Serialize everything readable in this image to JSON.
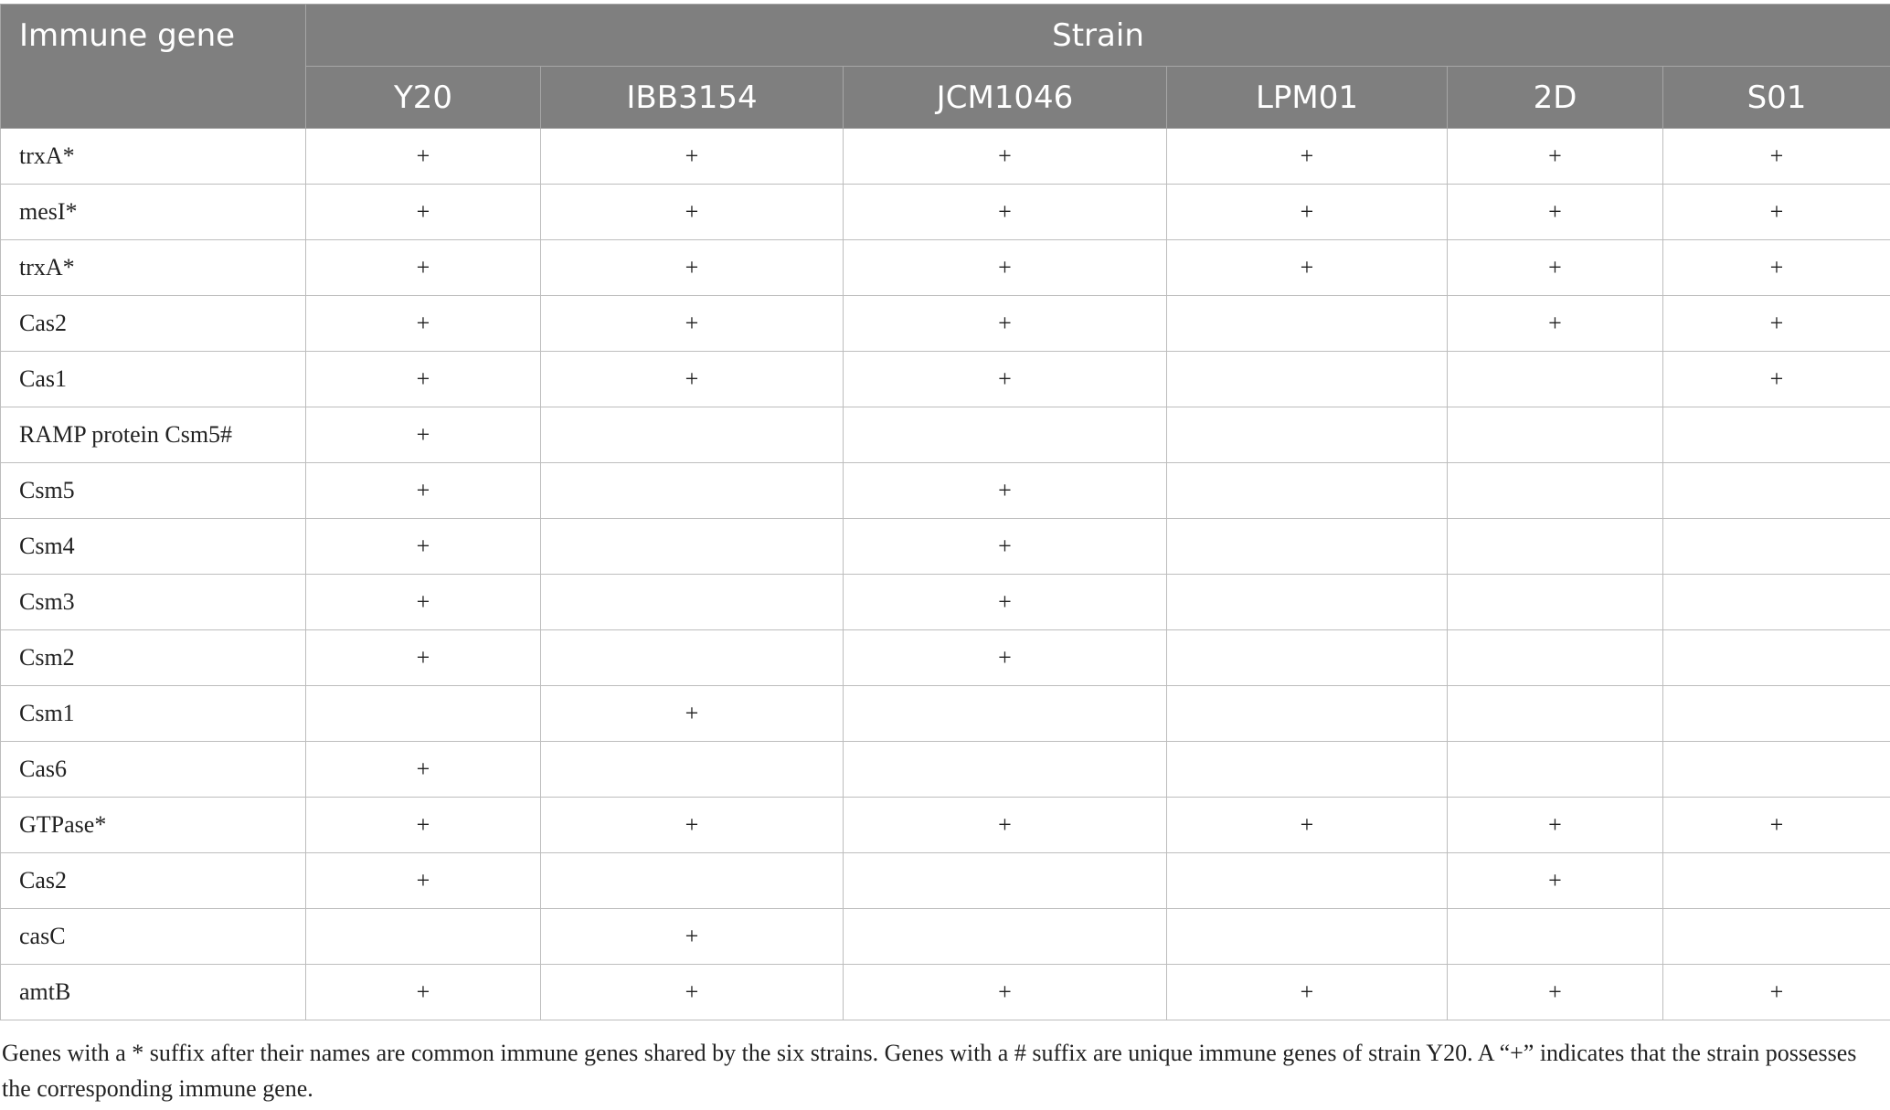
{
  "table": {
    "row_header": "Immune gene",
    "group_header": "Strain",
    "strains": [
      "Y20",
      "IBB3154",
      "JCM1046",
      "LPM01",
      "2D",
      "S01"
    ],
    "rows": [
      {
        "gene": "trxA*",
        "cells": [
          "+",
          "+",
          "+",
          "+",
          "+",
          "+"
        ]
      },
      {
        "gene": "mesI*",
        "cells": [
          "+",
          "+",
          "+",
          "+",
          "+",
          "+"
        ]
      },
      {
        "gene": "trxA*",
        "cells": [
          "+",
          "+",
          "+",
          "+",
          "+",
          "+"
        ]
      },
      {
        "gene": "Cas2",
        "cells": [
          "+",
          "+",
          "+",
          "",
          "+",
          "+"
        ]
      },
      {
        "gene": "Cas1",
        "cells": [
          "+",
          "+",
          "+",
          "",
          "",
          "+"
        ]
      },
      {
        "gene": "RAMP protein Csm5#",
        "cells": [
          "+",
          "",
          "",
          "",
          "",
          ""
        ]
      },
      {
        "gene": "Csm5",
        "cells": [
          "+",
          "",
          "+",
          "",
          "",
          ""
        ]
      },
      {
        "gene": "Csm4",
        "cells": [
          "+",
          "",
          "+",
          "",
          "",
          ""
        ]
      },
      {
        "gene": "Csm3",
        "cells": [
          "+",
          "",
          "+",
          "",
          "",
          ""
        ]
      },
      {
        "gene": "Csm2",
        "cells": [
          "+",
          "",
          "+",
          "",
          "",
          ""
        ]
      },
      {
        "gene": "Csm1",
        "cells": [
          "",
          "+",
          "",
          "",
          "",
          ""
        ]
      },
      {
        "gene": "Cas6",
        "cells": [
          "+",
          "",
          "",
          "",
          "",
          ""
        ]
      },
      {
        "gene": "GTPase*",
        "cells": [
          "+",
          "+",
          "+",
          "+",
          "+",
          "+"
        ]
      },
      {
        "gene": "Cas2",
        "cells": [
          "+",
          "",
          "",
          "",
          "+",
          ""
        ]
      },
      {
        "gene": "casC",
        "cells": [
          "",
          "+",
          "",
          "",
          "",
          ""
        ]
      },
      {
        "gene": "amtB",
        "cells": [
          "+",
          "+",
          "+",
          "+",
          "+",
          "+"
        ]
      }
    ]
  },
  "footnote": "Genes with a * suffix after their names are common immune genes shared by the six strains. Genes with a # suffix are unique immune genes of strain Y20. A “+” indicates that the strain possesses the corresponding immune gene."
}
